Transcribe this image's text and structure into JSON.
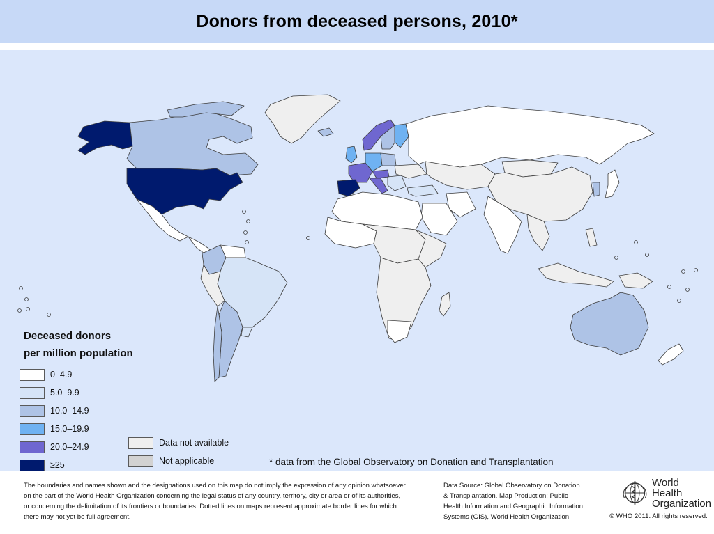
{
  "title": "Donors from deceased persons, 2010*",
  "legend": {
    "title_line1": "Deceased donors",
    "title_line2": "per million population",
    "classes": [
      {
        "label": "0–4.9",
        "color": "#ffffff"
      },
      {
        "label": "5.0–9.9",
        "color": "#d6e4f7"
      },
      {
        "label": "10.0–14.9",
        "color": "#aec3e6"
      },
      {
        "label": "15.0–19.9",
        "color": "#6fb2f2"
      },
      {
        "label": "20.0–24.9",
        "color": "#6f67d0"
      },
      {
        "label": "≥25",
        "color": "#001a6e"
      }
    ],
    "other": [
      {
        "label": "Data not available",
        "color": "#efefef"
      },
      {
        "label": "Not applicable",
        "color": "#d2d2d2"
      }
    ]
  },
  "colors": {
    "ocean": "#dbe7fb",
    "header": "#c7d9f7",
    "land_outline": "#3c3c3c"
  },
  "footnote": "* data from the Global Observatory on Donation and Transplantation",
  "disclaimer": {
    "line1": "The boundaries and names shown and the designations used on this map do not imply the expression of any opinion whatsoever",
    "line2": "on the part of the World Health Organization concerning the legal status of any country, territory, city or area or of its authorities,",
    "line3": "or concerning the delimitation of its frontiers or boundaries.  Dotted lines on maps represent approximate border lines for which",
    "line4": "there may not yet be full agreement."
  },
  "source": {
    "line1": "Data Source: Global Observatory on Donation",
    "line2": "& Transplantation. Map Production: Public",
    "line3": "Health Information and Geographic Information",
    "line4": "Systems (GIS), World Health Organization"
  },
  "logo": {
    "line1": "World Health",
    "line2": "Organization",
    "icon": "who-emblem-icon"
  },
  "copyright": "© WHO 2011. All rights reserved."
}
